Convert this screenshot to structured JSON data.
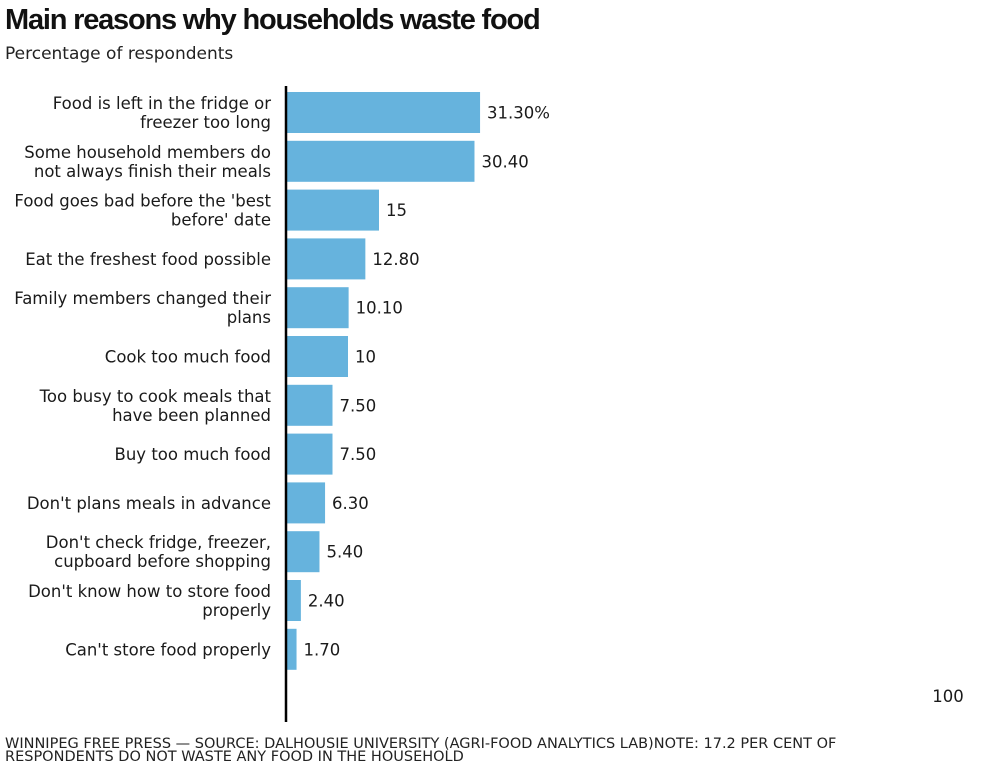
{
  "title": "Main reasons why households waste food",
  "subtitle": "Percentage of respondents",
  "footer": "WINNIPEG FREE PRESS — SOURCE: DALHOUSIE UNIVERSITY (AGRI-FOOD ANALYTICS LAB)NOTE: 17.2 PER CENT OF RESPONDENTS DO NOT WASTE ANY FOOD IN THE HOUSEHOLD",
  "colors": {
    "bar": "#66b3dd",
    "axis": "#000000",
    "text": "#1a1a1a"
  },
  "chart_data": {
    "type": "bar",
    "orientation": "horizontal",
    "title": "Main reasons why households waste food",
    "subtitle": "Percentage of respondents",
    "xlabel": "",
    "ylabel": "",
    "xlim": [
      0,
      100
    ],
    "axis_max_label": "100",
    "grid": false,
    "categories": [
      [
        "Food is left in the fridge or",
        "freezer too long"
      ],
      [
        "Some household members do",
        "not always finish their meals"
      ],
      [
        "Food goes bad before the 'best",
        "before' date"
      ],
      [
        "Eat the freshest food possible"
      ],
      [
        "Family members changed their",
        "plans"
      ],
      [
        "Cook too much food"
      ],
      [
        "Too busy to cook meals that",
        "have been planned"
      ],
      [
        "Buy too much food"
      ],
      [
        "Don't plans meals in advance"
      ],
      [
        "Don't check fridge, freezer,",
        "cupboard before shopping"
      ],
      [
        "Don't know how to store food",
        "properly"
      ],
      [
        "Can't store food properly"
      ]
    ],
    "values": [
      31.3,
      30.4,
      15,
      12.8,
      10.1,
      10,
      7.5,
      7.5,
      6.3,
      5.4,
      2.4,
      1.7
    ],
    "value_labels": [
      "31.30%",
      "30.40",
      "15",
      "12.80",
      "10.10",
      "10",
      "7.50",
      "7.50",
      "6.30",
      "5.40",
      "2.40",
      "1.70"
    ]
  }
}
